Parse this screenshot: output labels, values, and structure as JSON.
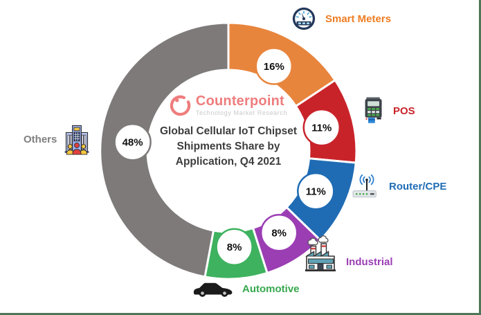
{
  "frame": {
    "background": "#ffffff",
    "border_color": "#4d7757"
  },
  "branding": {
    "name": "Counterpoint",
    "tagline": "Technology Market Research",
    "brand_color": "#ee7d7d",
    "tagline_color": "#c9c9c9"
  },
  "chart_data": {
    "type": "pie",
    "variant": "donut",
    "title": "Global Cellular IoT Chipset Shipments Share by Application, Q4 2021",
    "title_lines": [
      "Global Cellular IoT Chipset",
      "Shipments Share by",
      "Application, Q4 2021"
    ],
    "unit": "%",
    "start_angle_deg": 0,
    "direction": "clockwise",
    "gap_color": "#ffffff",
    "value_badge": {
      "fill": "#ffffff",
      "text_color": "#101010"
    },
    "segments": [
      {
        "label": "Smart Meters",
        "value": 16,
        "display": "16%",
        "color": "#e8853d",
        "label_color": "#ef7d23",
        "icon": "gauge-icon"
      },
      {
        "label": "POS",
        "value": 11,
        "display": "11%",
        "color": "#c9232a",
        "label_color": "#c9232a",
        "icon": "pos-terminal-icon"
      },
      {
        "label": "Router/CPE",
        "value": 11,
        "display": "11%",
        "color": "#1f6cb5",
        "label_color": "#1f6cb5",
        "icon": "router-icon"
      },
      {
        "label": "Industrial",
        "value": 8,
        "display": "8%",
        "color": "#9b3eb4",
        "label_color": "#9b3eb4",
        "icon": "factory-icon"
      },
      {
        "label": "Automotive",
        "value": 8,
        "display": "8%",
        "color": "#3eb25f",
        "label_color": "#36a84e",
        "icon": "car-icon"
      },
      {
        "label": "Others",
        "value": 48,
        "display": "48%",
        "color": "#7e7a7a",
        "label_color": "#7f7f7f",
        "icon": "building-icon"
      }
    ]
  }
}
